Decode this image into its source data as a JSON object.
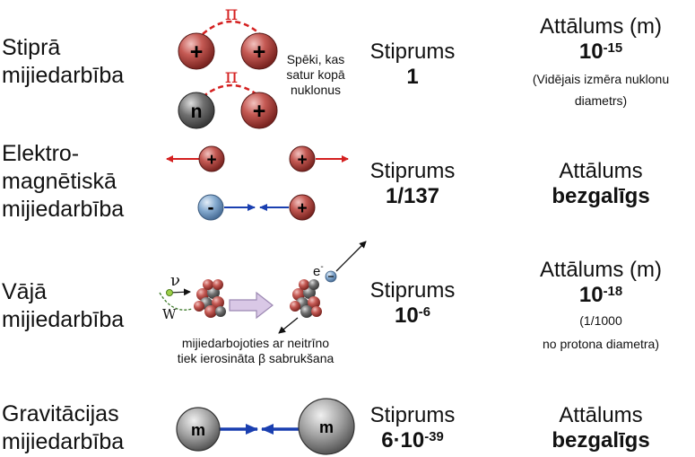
{
  "rows": [
    {
      "name": [
        "Stiprā",
        "mijiedarbība"
      ],
      "strength_label": "Stiprums",
      "strength_value": "1",
      "distance_title": "Attālums (m)",
      "distance_base": "10",
      "distance_exp": "-15",
      "distance_note": [
        "(Vidējais izmēra nuklonu",
        "diametrs)"
      ],
      "diagram_note": [
        "Spēki, kas",
        "satur kopā",
        "nuklonus"
      ],
      "pion_symbol": "π",
      "particles": [
        "+",
        "+",
        "n",
        "+"
      ]
    },
    {
      "name": [
        "Elektro-",
        "magnētiskā",
        "mijiedarbība"
      ],
      "strength_label": "Stiprums",
      "strength_value": "1/137",
      "distance_title": "Attālums",
      "distance_value": "bezgalīgs",
      "particles": [
        "+",
        "+",
        "-",
        "+"
      ]
    },
    {
      "name": [
        "Vājā",
        "mijiedarbība"
      ],
      "strength_label": "Stiprums",
      "strength_base": "10",
      "strength_exp": "-6",
      "distance_title": "Attālums (m)",
      "distance_base": "10",
      "distance_exp": "-18",
      "distance_note": [
        "(1/1000",
        "no protona diametra)"
      ],
      "diagram_note": [
        "mijiedarbojoties ar neitrīno",
        "tiek ierosināta β sabrukšana"
      ],
      "symbols": {
        "neutrino": "ν",
        "w": "W",
        "electron_base": "e",
        "electron_exp": "-"
      }
    },
    {
      "name": [
        "Gravitācijas",
        "mijiedarbība"
      ],
      "strength_label": "Stiprums",
      "strength_base": "6·10",
      "strength_exp": "-39",
      "distance_title": "Attālums",
      "distance_value": "bezgalīgs",
      "particles": [
        "m",
        "m"
      ]
    }
  ],
  "colors": {
    "proton": "#b5453f",
    "neutron": "#666666",
    "electron": "#7fa6cc",
    "mass": "#9a9a9a",
    "red_arrow": "#d42020",
    "blue_arrow": "#1a3fb0"
  }
}
